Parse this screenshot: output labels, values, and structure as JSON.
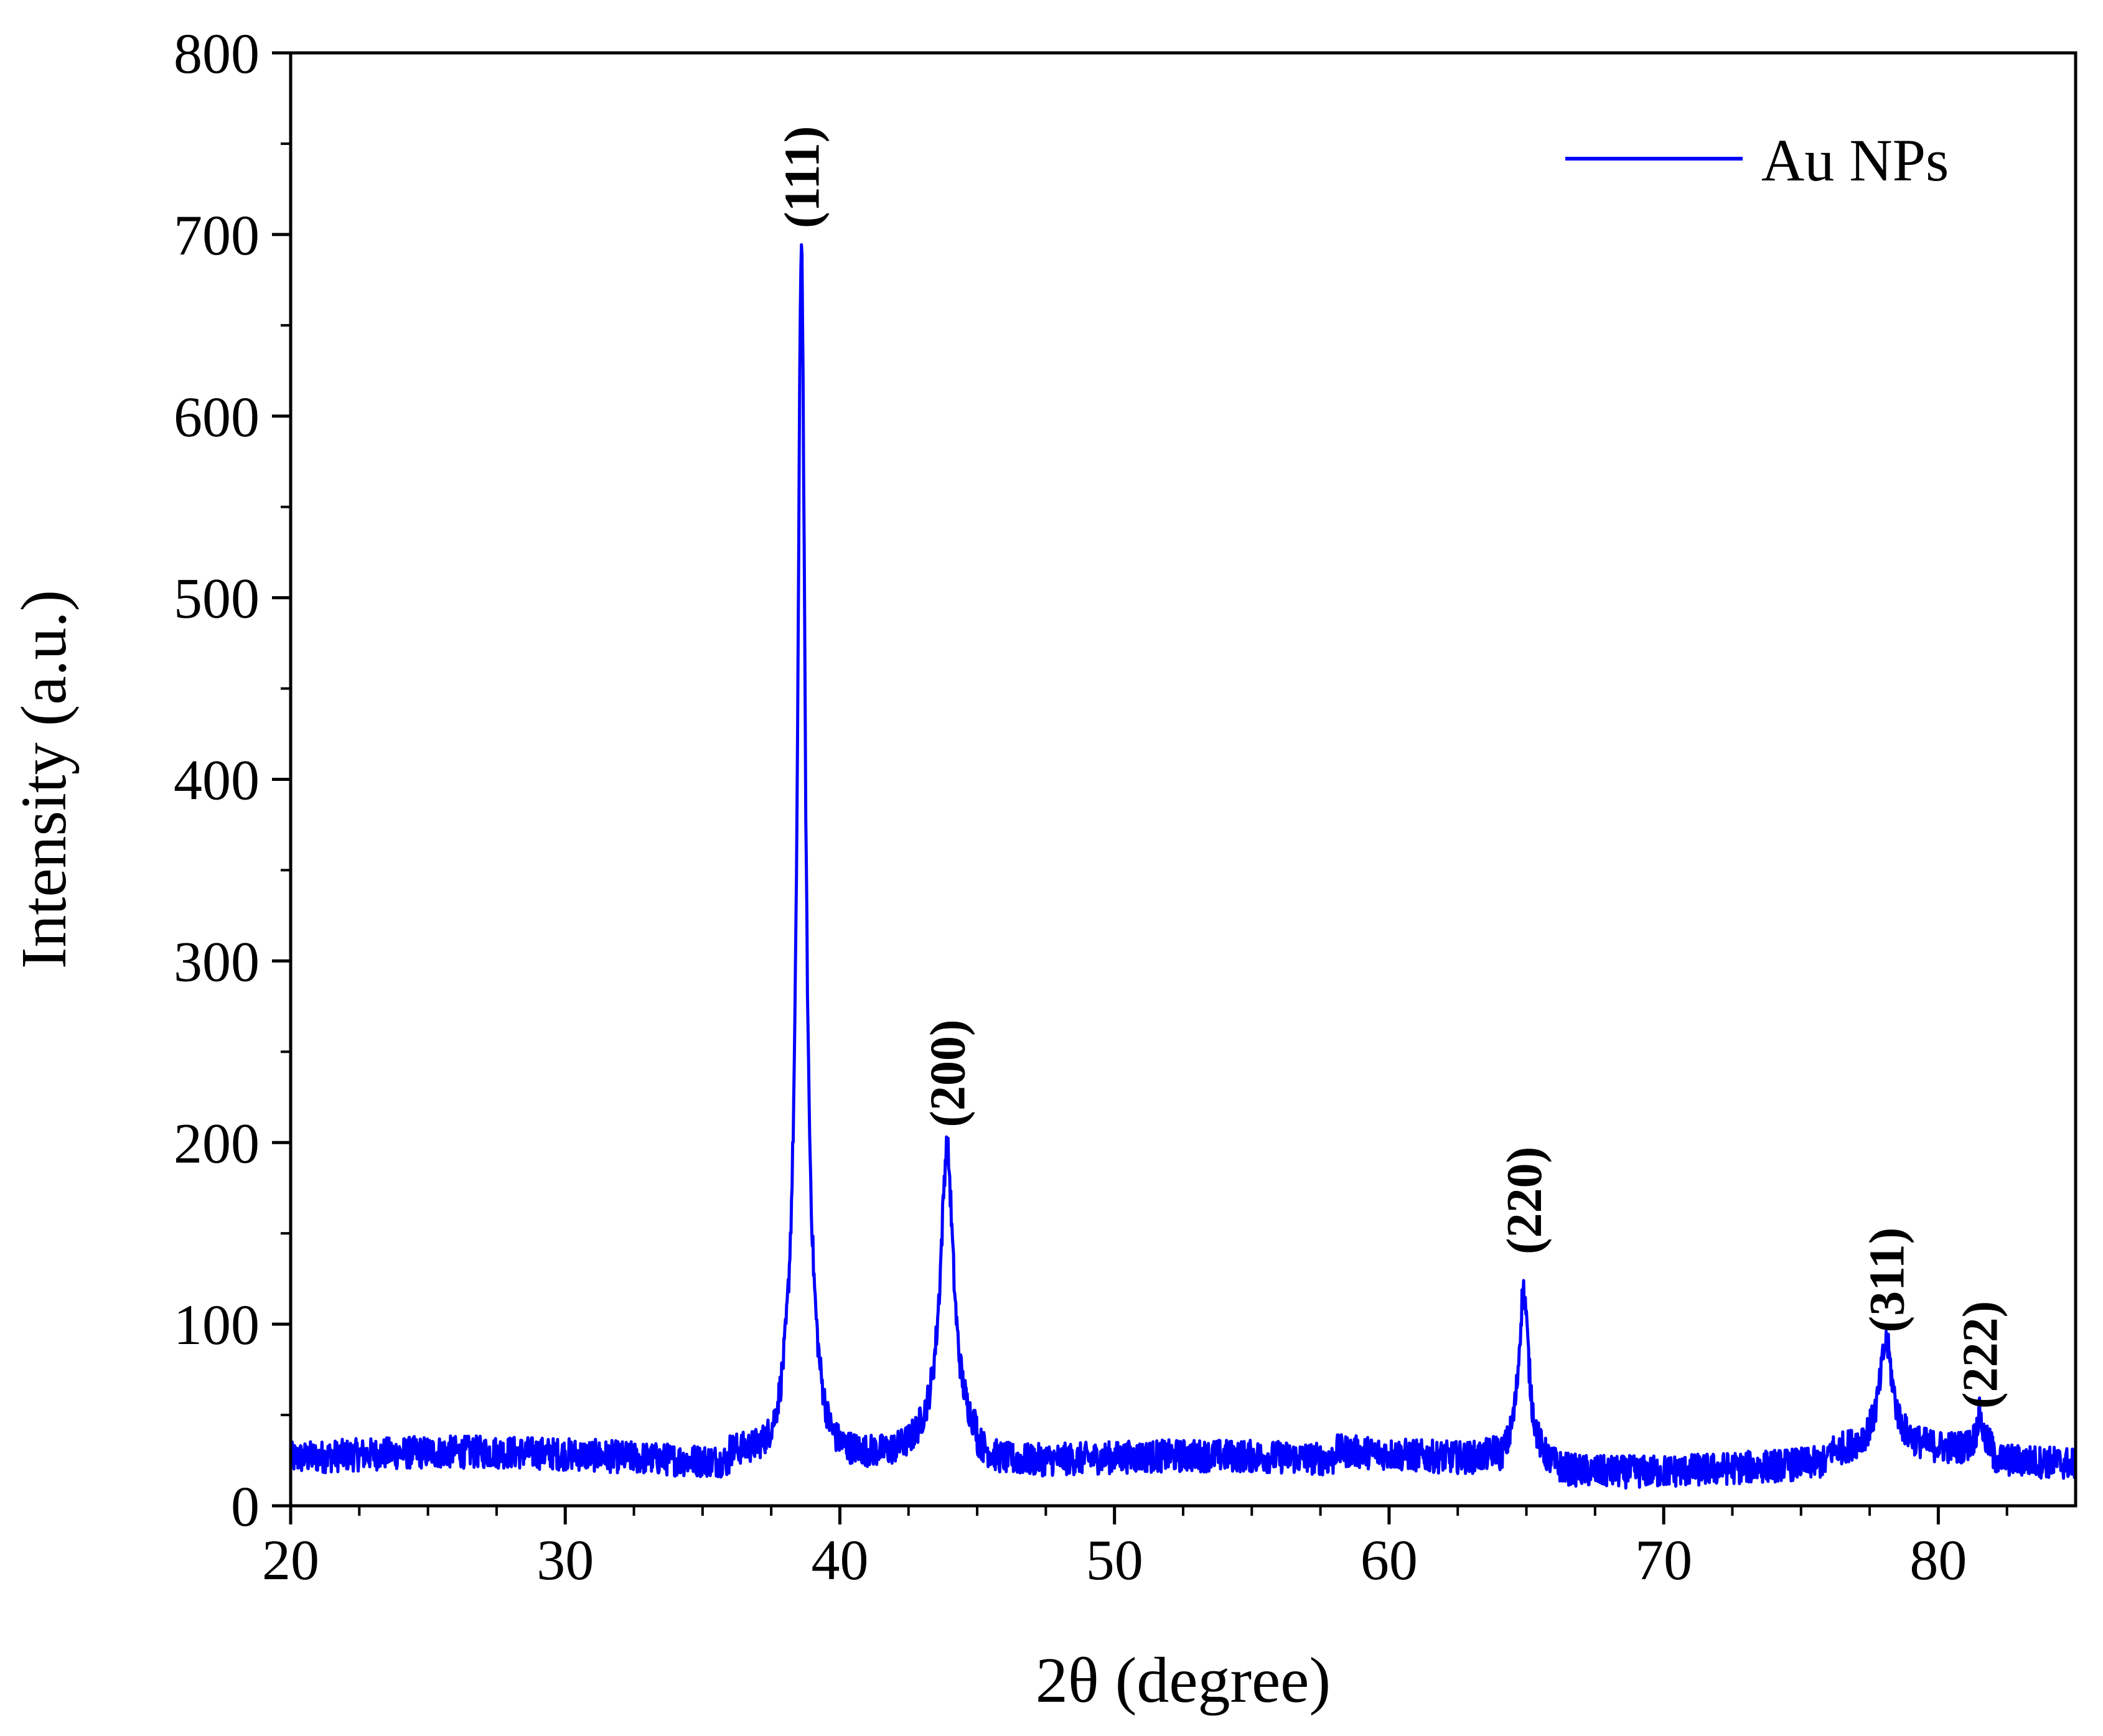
{
  "chart_data": {
    "type": "line",
    "title": "",
    "xlabel": "2θ (degree)",
    "ylabel": "Intensity (a.u.)",
    "xlim": [
      20,
      85
    ],
    "ylim": [
      0,
      800
    ],
    "xticks": [
      20,
      30,
      40,
      50,
      60,
      70,
      80
    ],
    "yticks": [
      0,
      100,
      200,
      300,
      400,
      500,
      600,
      700,
      800
    ],
    "x_minor_step": 2.5,
    "y_minor_step": 50,
    "grid": false,
    "legend": {
      "position": "top-right",
      "entries": [
        "Au NPs"
      ]
    },
    "series": [
      {
        "name": "Au NPs",
        "color": "#0000ff",
        "background_level": 26,
        "noise_amplitude": 9,
        "peaks": [
          {
            "x": 38.6,
            "y": 695,
            "width": 0.16
          },
          {
            "x": 43.9,
            "y": 195,
            "width": 0.28
          },
          {
            "x": 64.9,
            "y": 125,
            "width": 0.22
          },
          {
            "x": 78.1,
            "y": 85,
            "width": 0.28
          },
          {
            "x": 81.5,
            "y": 45,
            "width": 0.12
          }
        ],
        "sample_points": [
          [
            20,
            28
          ],
          [
            22.5,
            40
          ],
          [
            25,
            27
          ],
          [
            27.5,
            35
          ],
          [
            30,
            24
          ],
          [
            32.5,
            42
          ],
          [
            35,
            28
          ],
          [
            37,
            40
          ],
          [
            38,
            90
          ],
          [
            38.6,
            695
          ],
          [
            39.2,
            110
          ],
          [
            40,
            36
          ],
          [
            42,
            33
          ],
          [
            43.4,
            60
          ],
          [
            43.9,
            195
          ],
          [
            44.5,
            55
          ],
          [
            46,
            27
          ],
          [
            48,
            20
          ],
          [
            50,
            22
          ],
          [
            52,
            20
          ],
          [
            55,
            18
          ],
          [
            58,
            24
          ],
          [
            60,
            30
          ],
          [
            63,
            28
          ],
          [
            64.9,
            125
          ],
          [
            65.5,
            30
          ],
          [
            68,
            25
          ],
          [
            70,
            28
          ],
          [
            72,
            27
          ],
          [
            75,
            30
          ],
          [
            77.5,
            35
          ],
          [
            78.1,
            85
          ],
          [
            79,
            30
          ],
          [
            81.5,
            45
          ],
          [
            83,
            20
          ],
          [
            85,
            15
          ]
        ]
      }
    ],
    "annotations": [
      {
        "text": "(111)",
        "x": 38.6,
        "y": 700
      },
      {
        "text": "(200)",
        "x": 43.9,
        "y": 205
      },
      {
        "text": "(220)",
        "x": 64.9,
        "y": 135
      },
      {
        "text": "(311)",
        "x": 78.1,
        "y": 92
      },
      {
        "text": "(222)",
        "x": 81.5,
        "y": 50
      }
    ]
  }
}
